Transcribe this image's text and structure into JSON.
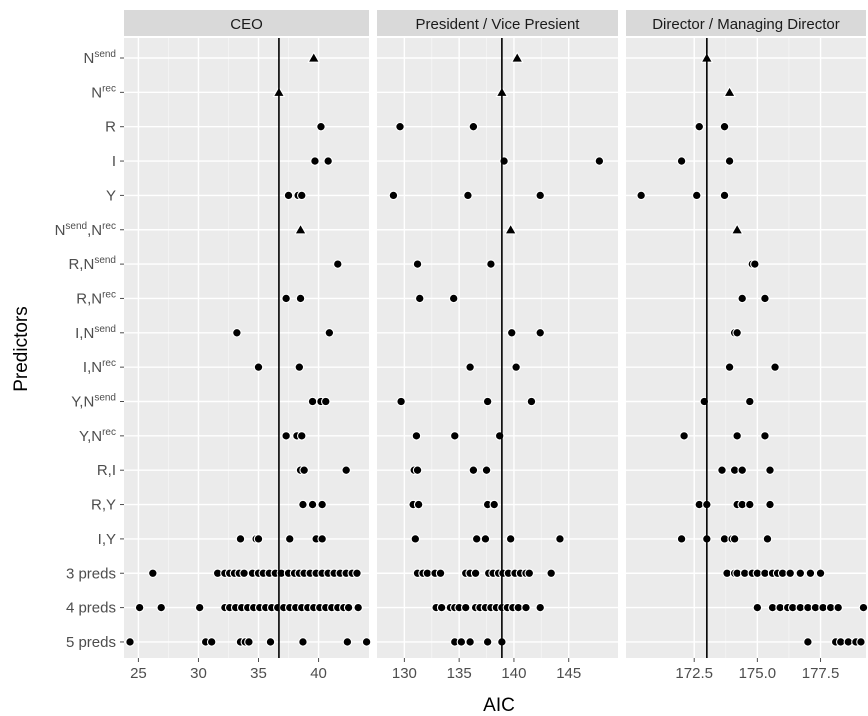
{
  "chart_data": {
    "type": "scatter",
    "xlabel": "AIC",
    "ylabel": "Predictors",
    "categories": [
      {
        "base": "N",
        "sup": "send"
      },
      {
        "base": "N",
        "sup": "rec"
      },
      {
        "base": "R"
      },
      {
        "base": "I"
      },
      {
        "base": "Y"
      },
      {
        "base": "N",
        "sup": "send",
        "base2": ",N",
        "sup2": "rec"
      },
      {
        "base": "R,N",
        "sup": "send"
      },
      {
        "base": "R,N",
        "sup": "rec"
      },
      {
        "base": "I,N",
        "sup": "send"
      },
      {
        "base": "I,N",
        "sup": "rec"
      },
      {
        "base": "Y,N",
        "sup": "send"
      },
      {
        "base": "Y,N",
        "sup": "rec"
      },
      {
        "base": "R,I"
      },
      {
        "base": "R,Y"
      },
      {
        "base": "I,Y"
      },
      {
        "base": "3 preds"
      },
      {
        "base": "4 preds"
      },
      {
        "base": "5 preds"
      }
    ],
    "panels": [
      {
        "title": "CEO",
        "xlim": [
          23.8,
          44.2
        ],
        "xticks": [
          25,
          30,
          35,
          40
        ],
        "xtick_labels": [
          "25",
          "30",
          "35",
          "40"
        ],
        "vline": 36.7,
        "points": [
          {
            "cat": 0,
            "x": [
              39.6
            ],
            "shape": "triangle"
          },
          {
            "cat": 1,
            "x": [
              36.7
            ],
            "shape": "triangle"
          },
          {
            "cat": 2,
            "x": [
              40.2
            ]
          },
          {
            "cat": 3,
            "x": [
              39.7,
              40.8
            ]
          },
          {
            "cat": 4,
            "x": [
              37.5,
              38.3,
              38.6
            ]
          },
          {
            "cat": 5,
            "x": [
              38.5
            ],
            "shape": "triangle"
          },
          {
            "cat": 6,
            "x": [
              41.6
            ]
          },
          {
            "cat": 7,
            "x": [
              37.3,
              38.5
            ]
          },
          {
            "cat": 8,
            "x": [
              33.2,
              40.9
            ]
          },
          {
            "cat": 9,
            "x": [
              35.0,
              38.4
            ]
          },
          {
            "cat": 10,
            "x": [
              39.5,
              40.2,
              40.6
            ]
          },
          {
            "cat": 11,
            "x": [
              37.3,
              38.2,
              38.6
            ]
          },
          {
            "cat": 12,
            "x": [
              38.5,
              38.8,
              42.3
            ]
          },
          {
            "cat": 13,
            "x": [
              38.7,
              39.5,
              40.3
            ]
          },
          {
            "cat": 14,
            "x": [
              33.5,
              34.8,
              35.0,
              37.6,
              39.8,
              40.3
            ]
          },
          {
            "cat": 15,
            "x": [
              26.2,
              31.6,
              32.2,
              32.6,
              33.0,
              33.4,
              33.8,
              34.5,
              35.0,
              35.4,
              35.9,
              36.4,
              36.9,
              37.5,
              38.0,
              38.4,
              38.8,
              39.3,
              39.8,
              40.3,
              40.8,
              41.3,
              41.8,
              42.3,
              42.8,
              43.2
            ]
          },
          {
            "cat": 16,
            "x": [
              25.1,
              26.9,
              30.1,
              32.2,
              32.6,
              33.1,
              33.6,
              34.1,
              34.6,
              35.1,
              35.6,
              36.1,
              36.6,
              37.1,
              37.6,
              38.1,
              38.6,
              39.1,
              39.6,
              40.1,
              40.6,
              41.1,
              41.6,
              42.1,
              42.5,
              43.3
            ]
          },
          {
            "cat": 17,
            "x": [
              24.3,
              30.6,
              31.1,
              33.5,
              33.9,
              34.2,
              36.0,
              38.7,
              42.4,
              44.0
            ]
          }
        ]
      },
      {
        "title": "President / Vice Presient",
        "xlim": [
          127.5,
          149.5
        ],
        "xticks": [
          130,
          135,
          140,
          145
        ],
        "xtick_labels": [
          "130",
          "135",
          "140",
          "145"
        ],
        "vline": 138.9,
        "points": [
          {
            "cat": 0,
            "x": [
              140.3
            ],
            "shape": "triangle"
          },
          {
            "cat": 1,
            "x": [
              138.9
            ],
            "shape": "triangle"
          },
          {
            "cat": 2,
            "x": [
              129.6,
              136.3
            ]
          },
          {
            "cat": 3,
            "x": [
              139.1,
              147.8
            ]
          },
          {
            "cat": 4,
            "x": [
              129.0,
              135.8,
              142.4
            ]
          },
          {
            "cat": 5,
            "x": [
              139.7
            ],
            "shape": "triangle"
          },
          {
            "cat": 6,
            "x": [
              131.2,
              137.9
            ]
          },
          {
            "cat": 7,
            "x": [
              131.4,
              134.5
            ]
          },
          {
            "cat": 8,
            "x": [
              139.8,
              142.4
            ]
          },
          {
            "cat": 9,
            "x": [
              136.0,
              140.2
            ]
          },
          {
            "cat": 10,
            "x": [
              129.7,
              137.6,
              141.6
            ]
          },
          {
            "cat": 11,
            "x": [
              131.1,
              134.6,
              138.7
            ]
          },
          {
            "cat": 12,
            "x": [
              130.9,
              131.2,
              136.3,
              137.5
            ]
          },
          {
            "cat": 13,
            "x": [
              130.8,
              131.3,
              137.6,
              138.2
            ]
          },
          {
            "cat": 14,
            "x": [
              131.0,
              136.6,
              137.4,
              139.7,
              144.2
            ]
          },
          {
            "cat": 15,
            "x": [
              131.2,
              131.7,
              132.1,
              132.8,
              133.3,
              135.6,
              136.0,
              136.5,
              137.7,
              138.1,
              138.6,
              139.0,
              139.5,
              140.1,
              140.6,
              141.1,
              141.4,
              143.4
            ]
          },
          {
            "cat": 16,
            "x": [
              132.9,
              133.4,
              134.2,
              134.6,
              135.0,
              135.6,
              136.5,
              136.9,
              137.4,
              137.9,
              138.4,
              138.9,
              139.4,
              139.9,
              140.4,
              141.1,
              142.4
            ]
          },
          {
            "cat": 17,
            "x": [
              134.6,
              135.2,
              136.0,
              137.6,
              138.9
            ]
          }
        ]
      },
      {
        "title": "Director / Managing Director",
        "xlim": [
          169.8,
          179.3
        ],
        "xticks": [
          172.5,
          175.0,
          177.5
        ],
        "xtick_labels": [
          "172.5",
          "175.0",
          "177.5"
        ],
        "vline": 173.0,
        "points": [
          {
            "cat": 0,
            "x": [
              173.0
            ],
            "shape": "triangle"
          },
          {
            "cat": 1,
            "x": [
              173.9
            ],
            "shape": "triangle"
          },
          {
            "cat": 2,
            "x": [
              172.7,
              173.7
            ]
          },
          {
            "cat": 3,
            "x": [
              172.0,
              173.9
            ]
          },
          {
            "cat": 4,
            "x": [
              170.4,
              172.6,
              173.7
            ]
          },
          {
            "cat": 5,
            "x": [
              174.2
            ],
            "shape": "triangle"
          },
          {
            "cat": 6,
            "x": [
              174.8,
              174.9
            ]
          },
          {
            "cat": 7,
            "x": [
              174.4,
              175.3
            ]
          },
          {
            "cat": 8,
            "x": [
              174.1,
              174.2
            ]
          },
          {
            "cat": 9,
            "x": [
              173.9,
              175.7
            ]
          },
          {
            "cat": 10,
            "x": [
              172.9,
              174.7
            ]
          },
          {
            "cat": 11,
            "x": [
              172.1,
              174.2,
              175.3
            ]
          },
          {
            "cat": 12,
            "x": [
              173.6,
              174.1,
              174.4,
              175.5
            ]
          },
          {
            "cat": 13,
            "x": [
              172.7,
              173.0,
              174.2,
              174.4,
              174.7,
              175.5
            ]
          },
          {
            "cat": 14,
            "x": [
              172.0,
              173.0,
              173.7,
              174.0,
              174.1,
              175.4
            ]
          },
          {
            "cat": 15,
            "x": [
              173.8,
              174.1,
              174.2,
              174.5,
              174.8,
              175.0,
              175.3,
              175.6,
              175.8,
              176.0,
              176.3,
              176.7,
              177.1,
              177.5
            ]
          },
          {
            "cat": 16,
            "x": [
              175.0,
              175.6,
              175.9,
              176.2,
              176.4,
              176.7,
              177.0,
              177.3,
              177.6,
              177.9,
              178.2,
              179.2
            ]
          },
          {
            "cat": 17,
            "x": [
              177.0,
              178.1,
              178.3,
              178.6,
              178.9,
              179.1
            ]
          }
        ]
      }
    ]
  }
}
